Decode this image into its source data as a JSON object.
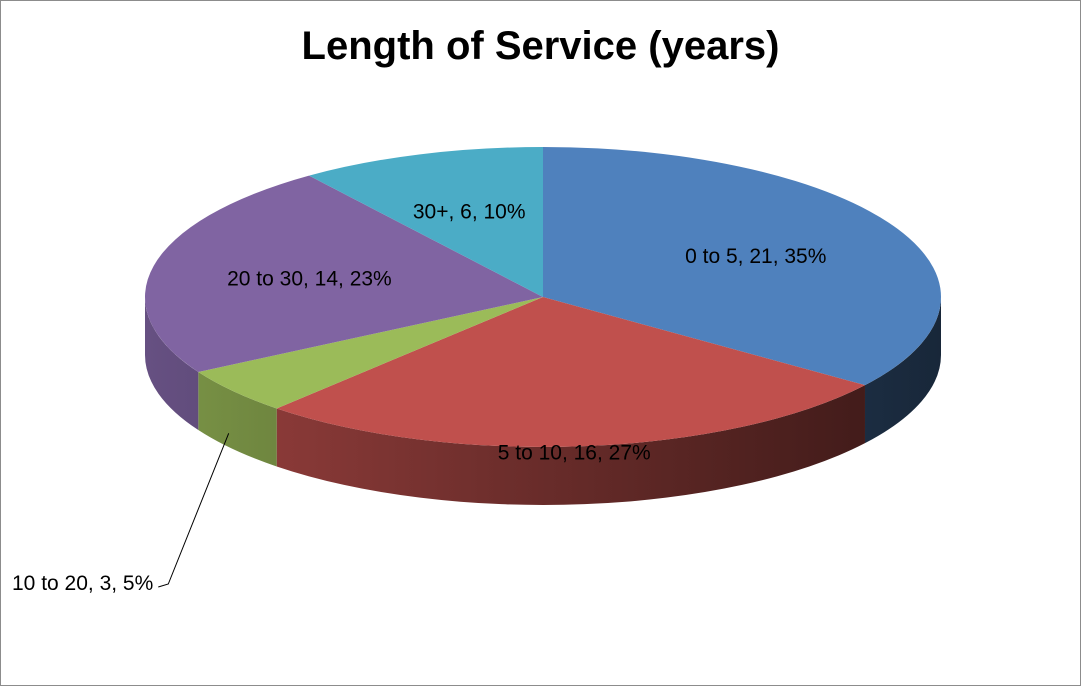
{
  "chart_data": {
    "type": "pie",
    "title": "Length of Service (years)",
    "slices": [
      {
        "category": "0 to 5",
        "value": 21,
        "percent": 35,
        "label": "0 to 5, 21, 35%",
        "color": "#4F81BD"
      },
      {
        "category": "5 to 10",
        "value": 16,
        "percent": 27,
        "label": "5 to 10, 16, 27%",
        "color": "#C0504D"
      },
      {
        "category": "10 to 20",
        "value": 3,
        "percent": 5,
        "label": "10 to 20, 3, 5%",
        "color": "#9BBB59"
      },
      {
        "category": "20 to 30",
        "value": 14,
        "percent": 23,
        "label": "20 to 30, 14, 23%",
        "color": "#8064A2"
      },
      {
        "category": "30+",
        "value": 6,
        "percent": 10,
        "label": "30+, 6, 10%",
        "color": "#4BACC6"
      }
    ],
    "three_d": true
  }
}
